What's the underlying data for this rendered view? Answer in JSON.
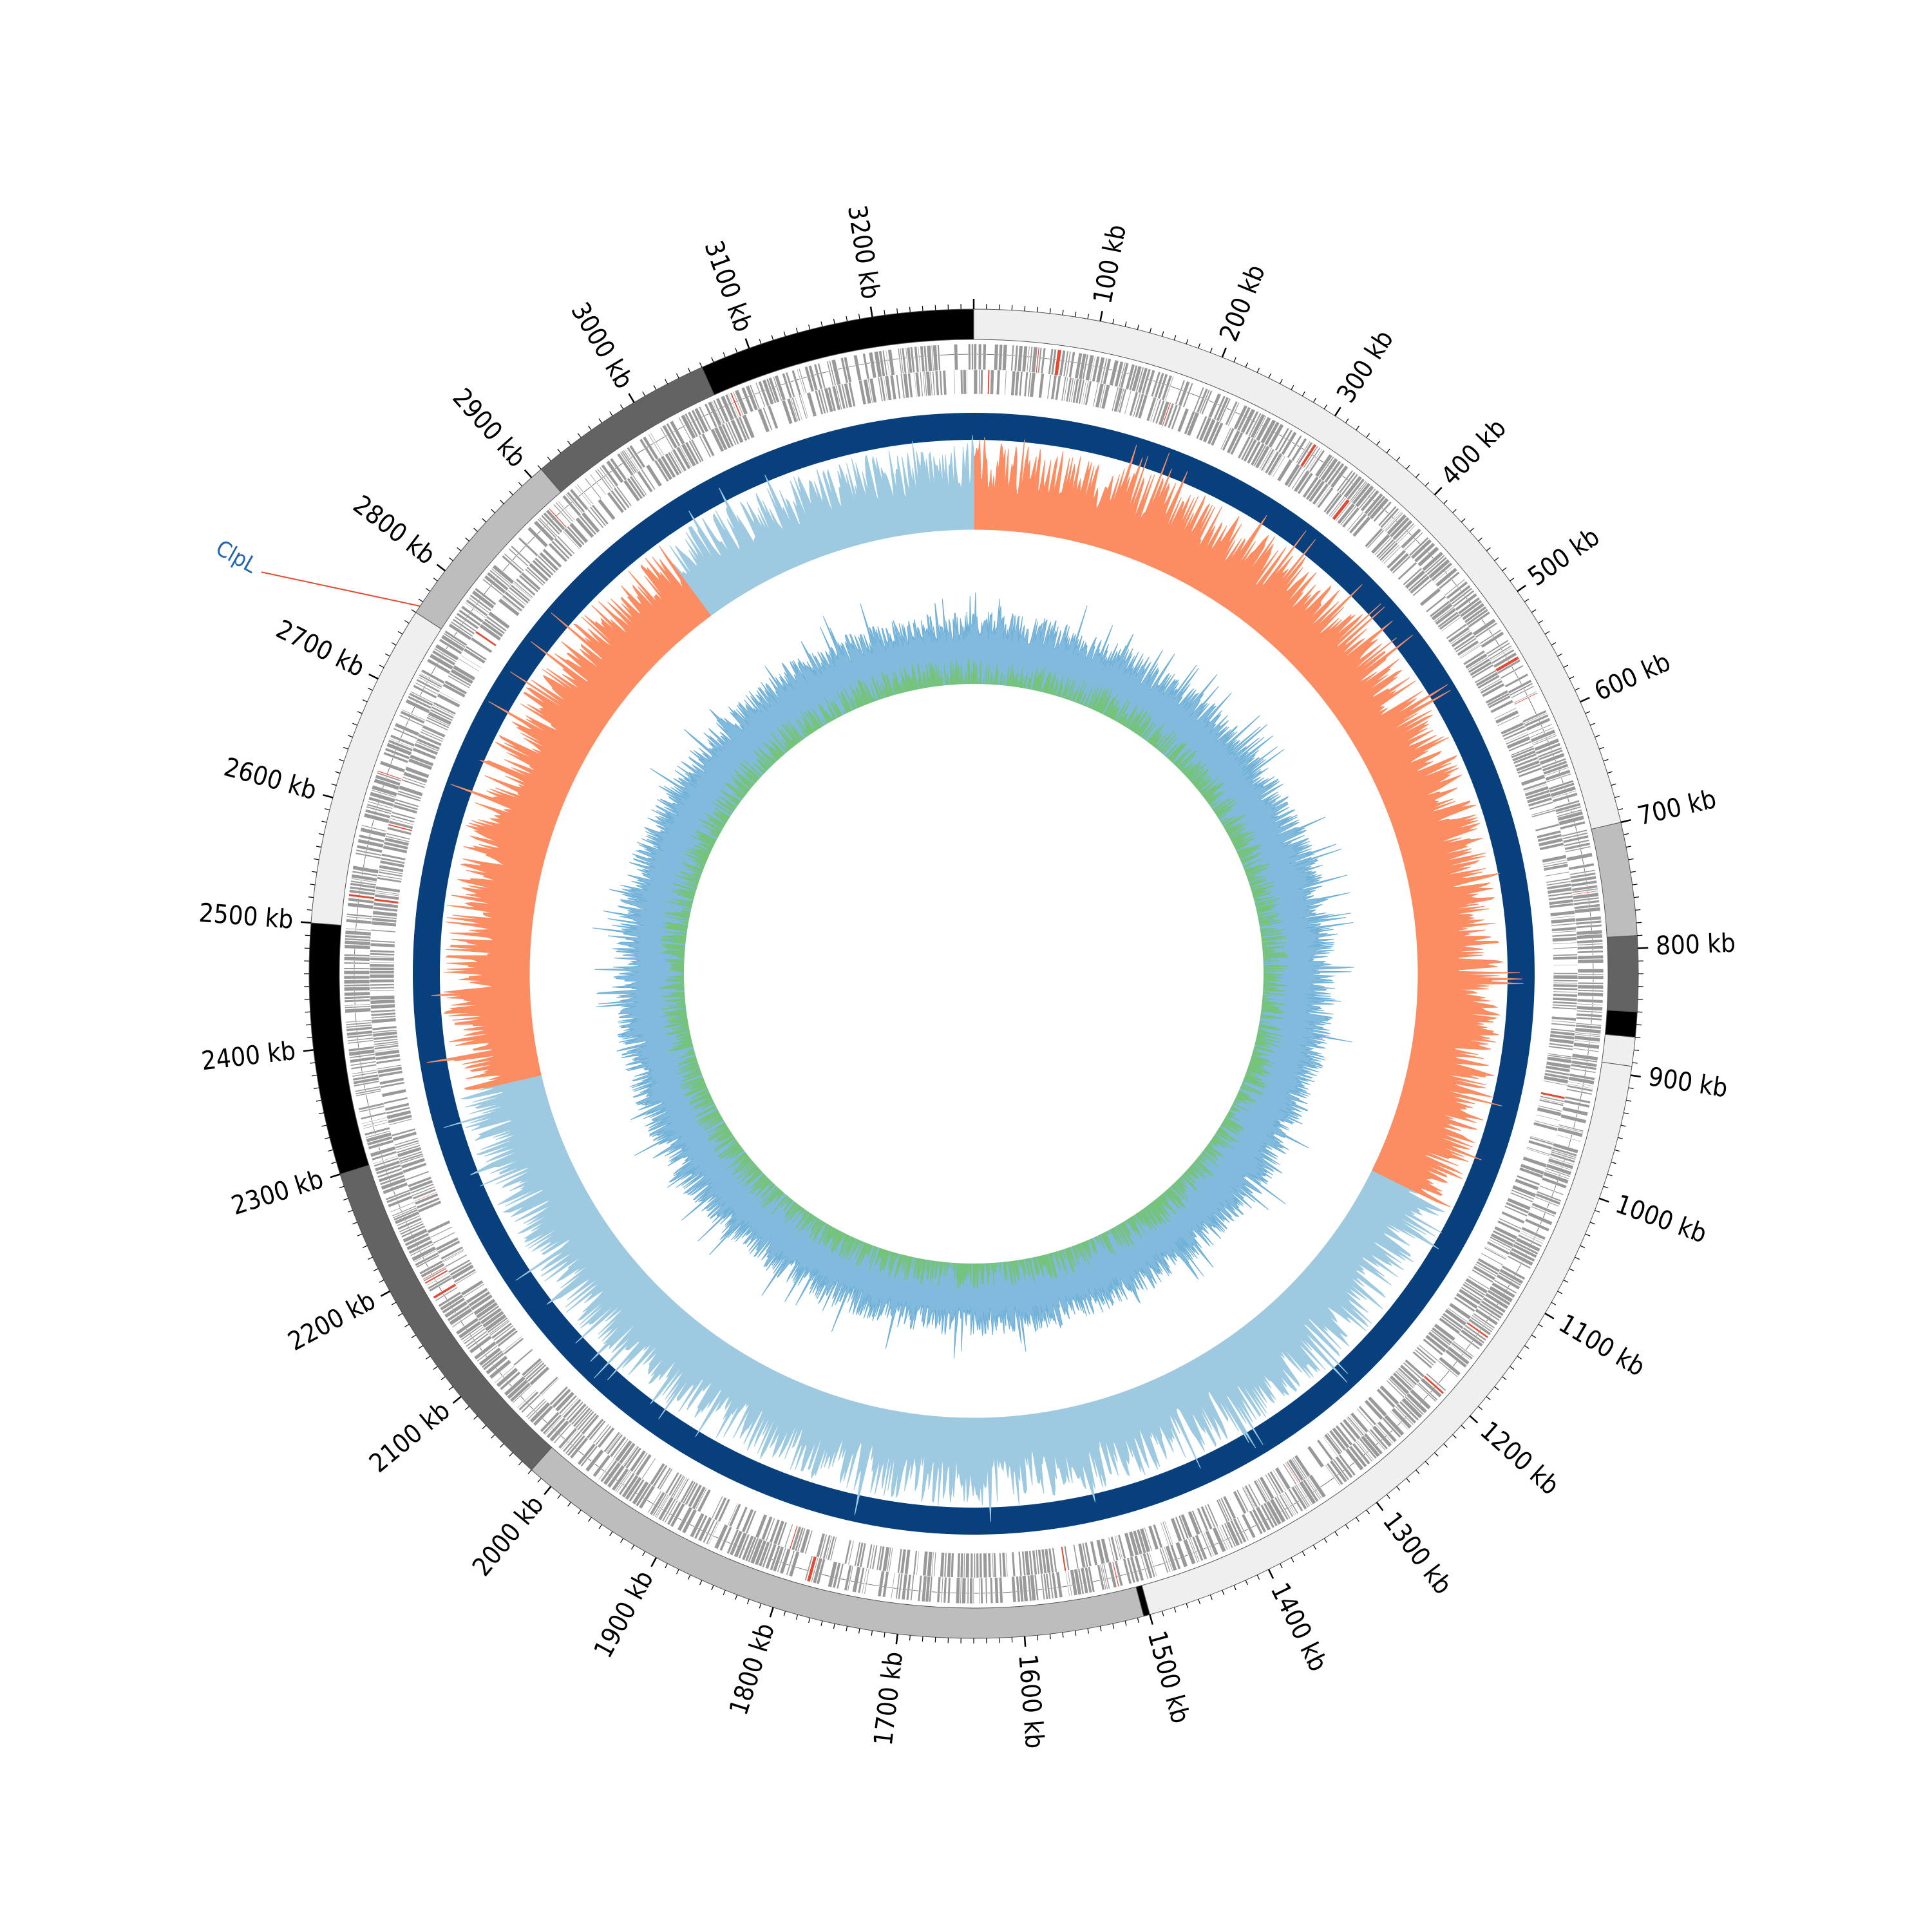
{
  "genome_length_kb": 3280,
  "tick_labels": [
    "100 kb",
    "200 kb",
    "300 kb",
    "400 kb",
    "500 kb",
    "600 kb",
    "700 kb",
    "800 kb",
    "900 kb",
    "1000 kb",
    "1100 kb",
    "1200 kb",
    "1300 kb",
    "1400 kb",
    "1500 kb",
    "1600 kb",
    "1700 kb",
    "1800 kb",
    "1900 kb",
    "2000 kb",
    "2100 kb",
    "2200 kb",
    "2300 kb",
    "2400 kb",
    "2500 kb",
    "2600 kb",
    "2700 kb",
    "2800 kb",
    "2900 kb",
    "3000 kb",
    "3100 kb",
    "3200 kb"
  ],
  "tick_positions_kb": [
    100,
    200,
    300,
    400,
    500,
    600,
    700,
    800,
    900,
    1000,
    1100,
    1200,
    1300,
    1400,
    1500,
    1600,
    1700,
    1800,
    1900,
    2000,
    2100,
    2200,
    2300,
    2400,
    2500,
    2600,
    2700,
    2800,
    2900,
    3000,
    3100,
    3200
  ],
  "contigs_kb": [
    {
      "start": 0,
      "end": 700,
      "color": "#efefef"
    },
    {
      "start": 700,
      "end": 790,
      "color": "#bdbdbd"
    },
    {
      "start": 790,
      "end": 850,
      "color": "#636363"
    },
    {
      "start": 850,
      "end": 870,
      "color": "#000000"
    },
    {
      "start": 870,
      "end": 893,
      "color": "#efefef"
    },
    {
      "start": 893,
      "end": 1500,
      "color": "#efefef"
    },
    {
      "start": 1500,
      "end": 1505,
      "color": "#000000"
    },
    {
      "start": 1505,
      "end": 2020,
      "color": "#bdbdbd"
    },
    {
      "start": 2020,
      "end": 2300,
      "color": "#636363"
    },
    {
      "start": 2300,
      "end": 2500,
      "color": "#000000"
    },
    {
      "start": 2500,
      "end": 2760,
      "color": "#efefef"
    },
    {
      "start": 2760,
      "end": 2910,
      "color": "#bdbdbd"
    },
    {
      "start": 2910,
      "end": 3060,
      "color": "#636363"
    },
    {
      "start": 3060,
      "end": 3280,
      "color": "#000000"
    }
  ],
  "gc_skew_segments_kb": [
    {
      "start": 0,
      "end": 1060,
      "sign": "positive"
    },
    {
      "start": 1060,
      "end": 2340,
      "sign": "negative"
    },
    {
      "start": 2340,
      "end": 2950,
      "sign": "positive"
    },
    {
      "start": 2950,
      "end": 3280,
      "sign": "negative"
    }
  ],
  "highlight_gene": {
    "label": "ClpL",
    "position_kb": 2766,
    "color": "#2166ac",
    "line_color": "#e34a33"
  },
  "colors": {
    "contig_outline": "#555555",
    "cds": "#999999",
    "cds_highlight": "#e34a33",
    "backbone": "#08407e",
    "skew_positive": "#fc8d62",
    "skew_negative": "#9ecae1",
    "skew_negative_edge": "#6baed6",
    "gc_content": "#6baed6",
    "gc_inner": "#74c476"
  }
}
